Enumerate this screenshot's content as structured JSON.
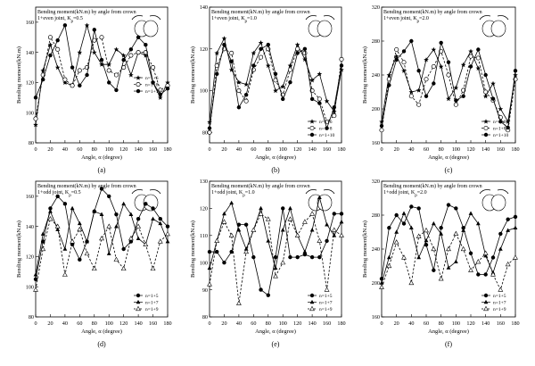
{
  "chart_data": [
    {
      "type": "line",
      "panel_label": "(a)",
      "title_lines": [
        "Bending moment(kN.m) by angle from crown",
        "1+even joint, K_p=0.5"
      ],
      "xlabel": "Angle, α (degree)",
      "ylabel": "Bending moment(kN.m)",
      "xlim": [
        0,
        180
      ],
      "ylim": [
        80,
        170
      ],
      "xticks": [
        0,
        20,
        40,
        60,
        80,
        100,
        120,
        140,
        160,
        180
      ],
      "yticks": [
        80,
        100,
        120,
        140,
        160
      ],
      "x": [
        0,
        10,
        20,
        30,
        40,
        50,
        60,
        70,
        80,
        90,
        100,
        110,
        120,
        130,
        140,
        150,
        160,
        170,
        180
      ],
      "legend_position": "right-middle",
      "series": [
        {
          "name": "n=1+6",
          "marker": "star",
          "dash": false,
          "values": [
            92,
            128,
            145,
            130,
            120,
            118,
            140,
            158,
            140,
            132,
            132,
            142,
            138,
            125,
            140,
            138,
            120,
            110,
            120
          ]
        },
        {
          "name": "n=1+8",
          "marker": "circle-open",
          "dash": true,
          "values": [
            96,
            125,
            150,
            142,
            122,
            118,
            128,
            130,
            148,
            150,
            128,
            125,
            130,
            138,
            140,
            140,
            130,
            115,
            118
          ]
        },
        {
          "name": "n=1+10",
          "marker": "dot",
          "dash": false,
          "values": [
            110,
            122,
            138,
            148,
            158,
            130,
            118,
            125,
            155,
            135,
            120,
            115,
            135,
            142,
            150,
            145,
            120,
            112,
            116
          ]
        }
      ]
    },
    {
      "type": "line",
      "panel_label": "(b)",
      "title_lines": [
        "Bending moment(kN.m) by angle from crown",
        "1+even joint, K_p=1.0"
      ],
      "xlabel": "Angle, α (degree)",
      "ylabel": "Bending moment(kN.m)",
      "xlim": [
        0,
        180
      ],
      "ylim": [
        75,
        140
      ],
      "xticks": [
        0,
        20,
        40,
        60,
        80,
        100,
        120,
        140,
        160,
        180
      ],
      "yticks": [
        80,
        100,
        120,
        140
      ],
      "x": [
        0,
        10,
        20,
        30,
        40,
        50,
        60,
        70,
        80,
        90,
        100,
        110,
        120,
        130,
        140,
        150,
        160,
        170,
        180
      ],
      "legend_position": "bottom-right",
      "series": [
        {
          "name": "n=1+6",
          "marker": "star",
          "dash": false,
          "values": [
            85,
            118,
            125,
            110,
            104,
            103,
            118,
            123,
            112,
            100,
            102,
            112,
            122,
            115,
            105,
            108,
            95,
            90,
            110
          ]
        },
        {
          "name": "n=1+8",
          "marker": "circle-open",
          "dash": true,
          "values": [
            80,
            112,
            120,
            118,
            100,
            95,
            110,
            116,
            120,
            105,
            98,
            110,
            120,
            118,
            100,
            96,
            85,
            88,
            115
          ]
        },
        {
          "name": "n=1+10",
          "marker": "dot",
          "dash": false,
          "values": [
            82,
            108,
            122,
            114,
            92,
            98,
            112,
            120,
            122,
            108,
            96,
            104,
            118,
            120,
            96,
            94,
            82,
            92,
            112
          ]
        }
      ]
    },
    {
      "type": "line",
      "panel_label": "(c)",
      "title_lines": [
        "Bending moment(kN.m) by angle from crown",
        "1+even joint, K_p=2.0"
      ],
      "xlabel": "Angle, α (degree)",
      "ylabel": "Bending moment(kN.m)",
      "xlim": [
        0,
        180
      ],
      "ylim": [
        160,
        320
      ],
      "xticks": [
        0,
        20,
        40,
        60,
        80,
        100,
        120,
        140,
        160,
        180
      ],
      "yticks": [
        160,
        200,
        240,
        280,
        320
      ],
      "x": [
        0,
        10,
        20,
        30,
        40,
        50,
        60,
        70,
        80,
        90,
        100,
        110,
        120,
        130,
        140,
        150,
        160,
        170,
        180
      ],
      "legend_position": "bottom-right",
      "series": [
        {
          "name": "n=1+6",
          "marker": "star",
          "dash": false,
          "values": [
            185,
            240,
            262,
            245,
            220,
            222,
            258,
            270,
            250,
            212,
            225,
            252,
            268,
            248,
            215,
            230,
            200,
            185,
            240
          ]
        },
        {
          "name": "n=1+8",
          "marker": "circle-open",
          "dash": true,
          "values": [
            175,
            235,
            270,
            255,
            215,
            205,
            235,
            250,
            268,
            240,
            205,
            222,
            262,
            260,
            220,
            210,
            190,
            175,
            235
          ]
        },
        {
          "name": "n=1+10",
          "marker": "dot",
          "dash": false,
          "values": [
            180,
            228,
            258,
            268,
            280,
            245,
            215,
            230,
            278,
            255,
            210,
            215,
            250,
            270,
            240,
            212,
            185,
            178,
            245
          ]
        }
      ]
    },
    {
      "type": "line",
      "panel_label": "(d)",
      "title_lines": [
        "Bending moment(kN.m) by angle from crown",
        "1+odd joint, K_p=0.5"
      ],
      "xlabel": "Angle, α (degree)",
      "ylabel": "Bending moment(kN.m)",
      "xlim": [
        0,
        180
      ],
      "ylim": [
        80,
        170
      ],
      "xticks": [
        0,
        20,
        40,
        60,
        80,
        100,
        120,
        140,
        160,
        180
      ],
      "yticks": [
        80,
        100,
        120,
        140,
        160
      ],
      "x": [
        0,
        10,
        20,
        30,
        40,
        50,
        60,
        70,
        80,
        90,
        100,
        110,
        120,
        130,
        140,
        150,
        160,
        170,
        180
      ],
      "legend_position": "bottom-right",
      "series": [
        {
          "name": "n=1+5",
          "marker": "dot",
          "dash": false,
          "values": [
            105,
            130,
            152,
            160,
            155,
            128,
            118,
            130,
            150,
            165,
            160,
            148,
            125,
            130,
            145,
            155,
            152,
            145,
            140
          ]
        },
        {
          "name": "n=1+7",
          "marker": "triangle",
          "dash": false,
          "values": [
            108,
            135,
            150,
            138,
            125,
            152,
            142,
            130,
            150,
            148,
            122,
            140,
            155,
            148,
            132,
            128,
            145,
            142,
            130
          ]
        },
        {
          "name": "n=1+9",
          "marker": "triangle-open",
          "dash": true,
          "values": [
            98,
            125,
            145,
            140,
            108,
            130,
            138,
            122,
            112,
            132,
            140,
            118,
            112,
            132,
            140,
            128,
            112,
            130,
            135
          ]
        }
      ]
    },
    {
      "type": "line",
      "panel_label": "(e)",
      "title_lines": [
        "Bending moment(kN.m) by angle from crown",
        "1+odd joint, K_p=1.0"
      ],
      "xlabel": "Angle, α (degree)",
      "ylabel": "Bending moment(kN.m)",
      "xlim": [
        0,
        180
      ],
      "ylim": [
        80,
        130
      ],
      "xticks": [
        0,
        20,
        40,
        60,
        80,
        100,
        120,
        140,
        160,
        180
      ],
      "yticks": [
        80,
        90,
        100,
        110,
        120,
        130
      ],
      "x": [
        0,
        10,
        20,
        30,
        40,
        50,
        60,
        70,
        80,
        90,
        100,
        110,
        120,
        130,
        140,
        150,
        160,
        170,
        180
      ],
      "legend_position": "bottom-right",
      "series": [
        {
          "name": "n=1+5",
          "marker": "dot",
          "dash": false,
          "values": [
            104,
            104,
            100,
            104,
            114,
            114,
            102,
            90,
            88,
            102,
            120,
            102,
            102,
            103,
            102,
            102,
            108,
            118,
            118
          ]
        },
        {
          "name": "n=1+7",
          "marker": "triangle",
          "dash": false,
          "values": [
            98,
            108,
            118,
            122,
            112,
            105,
            112,
            120,
            108,
            98,
            112,
            120,
            110,
            104,
            112,
            124,
            114,
            110,
            115
          ]
        },
        {
          "name": "n=1+9",
          "marker": "triangle-open",
          "dash": true,
          "values": [
            92,
            108,
            115,
            110,
            85,
            104,
            112,
            118,
            116,
            95,
            100,
            116,
            110,
            115,
            118,
            108,
            90,
            112,
            110
          ]
        }
      ]
    },
    {
      "type": "line",
      "panel_label": "(f)",
      "title_lines": [
        "Bending moment(kN.m) by angle from crown",
        "1+odd joint, K_p=2.0"
      ],
      "xlabel": "Angle, α (degree)",
      "ylabel": "Bending moment(kN.m)",
      "xlim": [
        0,
        180
      ],
      "ylim": [
        160,
        320
      ],
      "xticks": [
        0,
        20,
        40,
        60,
        80,
        100,
        120,
        140,
        160,
        180
      ],
      "yticks": [
        160,
        200,
        240,
        280,
        320
      ],
      "x": [
        0,
        10,
        20,
        30,
        40,
        50,
        60,
        70,
        80,
        90,
        100,
        110,
        120,
        130,
        140,
        150,
        160,
        170,
        180
      ],
      "legend_position": "bottom-right",
      "series": [
        {
          "name": "n=1+5",
          "marker": "dot",
          "dash": false,
          "values": [
            205,
            265,
            280,
            270,
            290,
            288,
            245,
            215,
            265,
            292,
            288,
            265,
            235,
            210,
            210,
            230,
            258,
            275,
            278
          ]
        },
        {
          "name": "n=1+7",
          "marker": "triangle",
          "dash": false,
          "values": [
            200,
            230,
            260,
            282,
            265,
            230,
            250,
            270,
            258,
            218,
            225,
            262,
            282,
            270,
            232,
            212,
            240,
            262,
            265
          ]
        },
        {
          "name": "n=1+9",
          "marker": "triangle-open",
          "dash": true,
          "values": [
            195,
            220,
            248,
            230,
            200,
            255,
            262,
            240,
            205,
            240,
            258,
            240,
            215,
            225,
            235,
            210,
            192,
            222,
            230
          ]
        }
      ]
    }
  ]
}
